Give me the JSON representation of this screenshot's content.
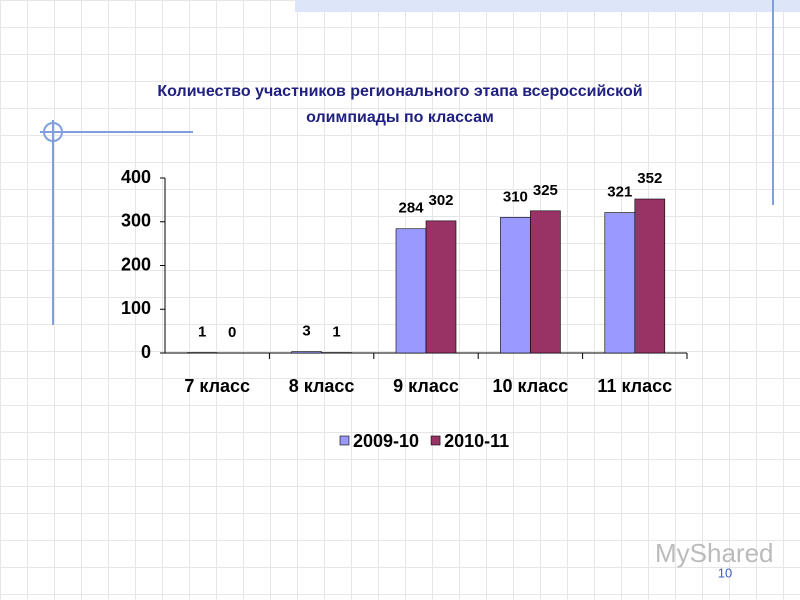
{
  "chart_data": {
    "type": "bar",
    "title": [
      "Количество участников регионального этапа всероссийской",
      "олимпиады по классам"
    ],
    "categories": [
      "7 класс",
      "8 класс",
      "9 класс",
      "10 класс",
      "11 класс"
    ],
    "series": [
      {
        "name": "2009-10",
        "color": "#9999ff",
        "values": [
          1,
          3,
          284,
          310,
          321
        ]
      },
      {
        "name": "2010-11",
        "color": "#993366",
        "values": [
          0,
          1,
          302,
          325,
          352
        ]
      }
    ],
    "ylim": [
      0,
      400
    ],
    "yticks": [
      0,
      100,
      200,
      300,
      400
    ],
    "grid": false,
    "legend": "bottom"
  },
  "slide": {
    "page_number": "10",
    "watermark": "MyShared"
  }
}
